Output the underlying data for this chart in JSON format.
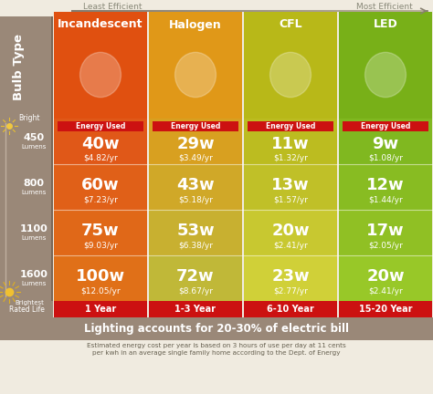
{
  "title_bar": "Lighting accounts for 20-30% of electric bill",
  "footnote": "Estimated energy cost per year is based on 3 hours of use per day at 11 cents\nper kwh in an average single family home according to the Dept. of Energy",
  "efficiency_label_left": "Least Efficient",
  "efficiency_label_right": "Most Efficient",
  "bulb_type_label": "Bulb Type",
  "columns": [
    "Incandescent",
    "Halogen",
    "CFL",
    "LED"
  ],
  "col_colors": [
    "#E05010",
    "#E09818",
    "#B8B818",
    "#78B018"
  ],
  "row_labels": [
    "450\nLumens",
    "800\nLumens",
    "1100\nLumens",
    "1600\nLumens"
  ],
  "row_lumen_nums": [
    "450",
    "800",
    "1100",
    "1600"
  ],
  "watts": [
    [
      "40w",
      "29w",
      "11w",
      "9w"
    ],
    [
      "60w",
      "43w",
      "13w",
      "12w"
    ],
    [
      "75w",
      "53w",
      "20w",
      "17w"
    ],
    [
      "100w",
      "72w",
      "23w",
      "20w"
    ]
  ],
  "costs": [
    [
      "$4.82/yr",
      "$3.49/yr",
      "$1.32/yr",
      "$1.08/yr"
    ],
    [
      "$7.23/yr",
      "$5.18/yr",
      "$1.57/yr",
      "$1.44/yr"
    ],
    [
      "$9.03/yr",
      "$6.38/yr",
      "$2.41/yr",
      "$2.05/yr"
    ],
    [
      "$12.05/yr",
      "$8.67/yr",
      "$2.77/yr",
      "$2.41/yr"
    ]
  ],
  "rated_life": [
    "1 Year",
    "1-3 Year",
    "6-10 Year",
    "15-20 Year"
  ],
  "energy_used_label": "Energy Used",
  "rated_life_label": "Rated Life",
  "bg_color": "#F0EBE0",
  "sidebar_color": "#9A8878",
  "bright_label_top": "Bright",
  "bright_label_bottom": "Brightest",
  "col_header_colors": [
    "#E05010",
    "#E09818",
    "#B8B818",
    "#78B018"
  ],
  "row_cell_colors": [
    [
      "#E05818",
      "#D8A020",
      "#BCBC20",
      "#80B820"
    ],
    [
      "#E06018",
      "#D0A828",
      "#C0C028",
      "#88BC22"
    ],
    [
      "#E06818",
      "#C8B030",
      "#C8C830",
      "#90C024"
    ],
    [
      "#E07018",
      "#C0B838",
      "#D0D038",
      "#98C828"
    ]
  ],
  "thin_bar_colors": [
    "#E05010",
    "#E09818",
    "#B8B818",
    "#78B018"
  ]
}
